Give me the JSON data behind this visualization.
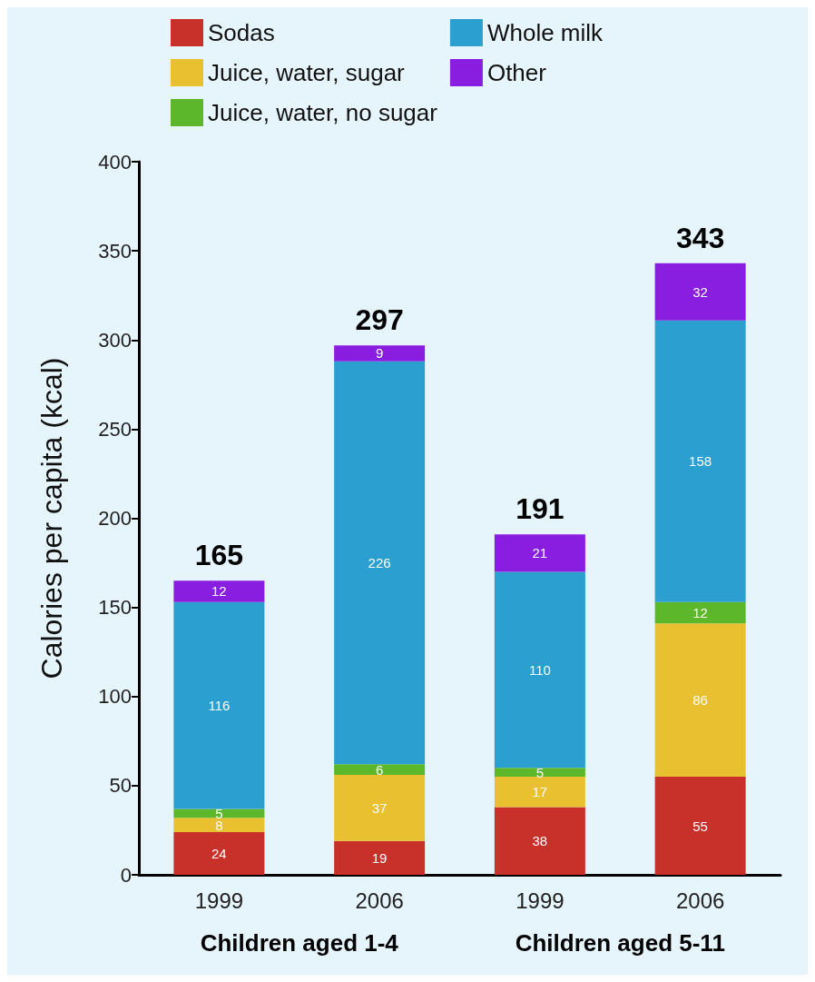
{
  "chart_data": {
    "type": "bar",
    "stacked": true,
    "ylabel": "Calories per capita (kcal)",
    "categories": [
      "1999",
      "2006",
      "1999",
      "2006"
    ],
    "series": [
      {
        "name": "Sodas",
        "color": "#c8302a",
        "values": [
          24,
          19,
          38,
          55
        ]
      },
      {
        "name": "Juice, water, sugar",
        "color": "#e8c030",
        "values": [
          8,
          37,
          17,
          86
        ]
      },
      {
        "name": "Juice, water, no sugar",
        "color": "#5cb82a",
        "values": [
          5,
          6,
          5,
          12
        ]
      },
      {
        "name": "Whole milk",
        "color": "#2a9fd0",
        "values": [
          116,
          226,
          110,
          158
        ]
      },
      {
        "name": "Other",
        "color": "#8a1ee0",
        "values": [
          12,
          9,
          21,
          32
        ]
      }
    ],
    "totals": [
      "165",
      "297",
      "191",
      "343"
    ],
    "data_labels": true,
    "annotations": [
      "Children aged 1-4",
      "Children aged 5-11"
    ],
    "ylim": [
      0,
      400
    ],
    "yticks": [
      0,
      50,
      100,
      150,
      200,
      250,
      300,
      350,
      400
    ],
    "grid": false,
    "legend": "top"
  }
}
